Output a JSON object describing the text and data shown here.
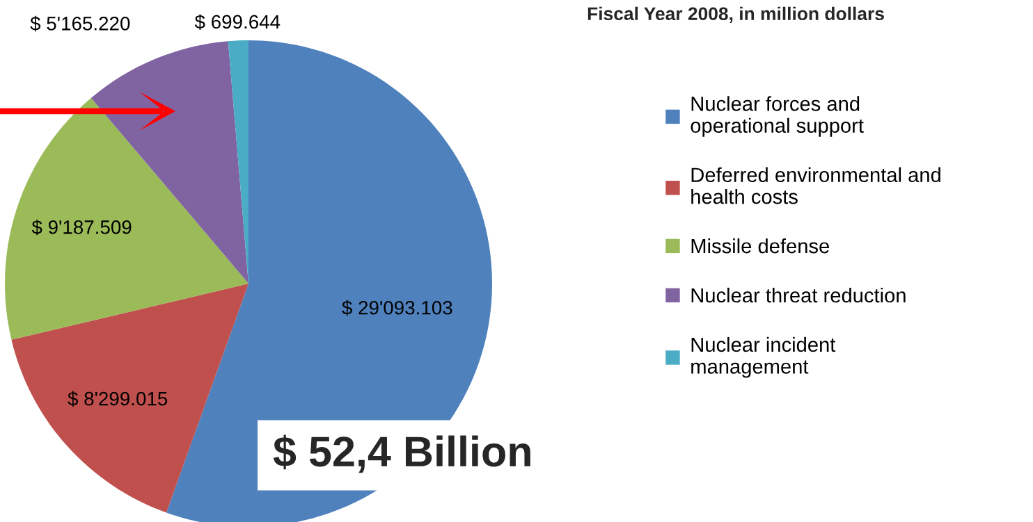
{
  "chart_data": {
    "type": "pie",
    "title": "Fiscal Year 2008, in million dollars",
    "categories": [
      "Nuclear forces and\noperational support",
      "Deferred environmental and\nhealth costs",
      "Missile defense",
      "Nuclear threat reduction",
      "Nuclear incident\nmanagement"
    ],
    "values": [
      29093.103,
      8299.015,
      9187.509,
      5165.22,
      699.644
    ],
    "value_labels": [
      "$ 29'093.103",
      "$ 8'299.015",
      "$ 9'187.509",
      "$ 5'165.220",
      "$ 699.644"
    ],
    "colors": [
      "#4f81bd",
      "#c0504d",
      "#9bbb59",
      "#8064a2",
      "#4bacc6"
    ],
    "annotations": [
      "$ 52,4 Billion"
    ],
    "legend": "right"
  }
}
